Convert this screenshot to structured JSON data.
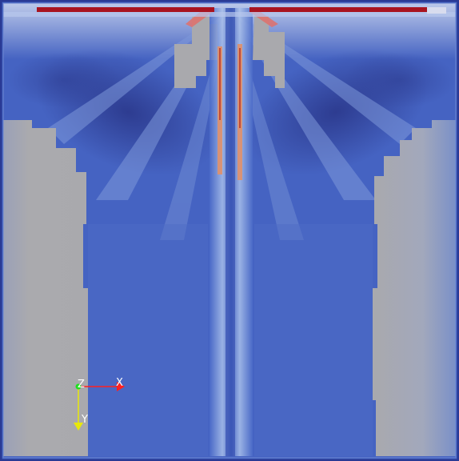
{
  "render_view": {
    "colors": {
      "domain_base": "#3f5fbf",
      "deep_blue": "#2f3f9a",
      "light_blue": "#8aa6e0",
      "pale": "#c9d4ee",
      "hot_red": "#a81420",
      "warm_orange": "#e0906a",
      "gray_mask": "#a9a9ad"
    },
    "orientation_axes": {
      "x_label": "X",
      "y_label": "Y",
      "z_label": "Z",
      "x_color": "#ff2020",
      "y_color": "#e8e80a",
      "z_color": "#20e020"
    }
  }
}
